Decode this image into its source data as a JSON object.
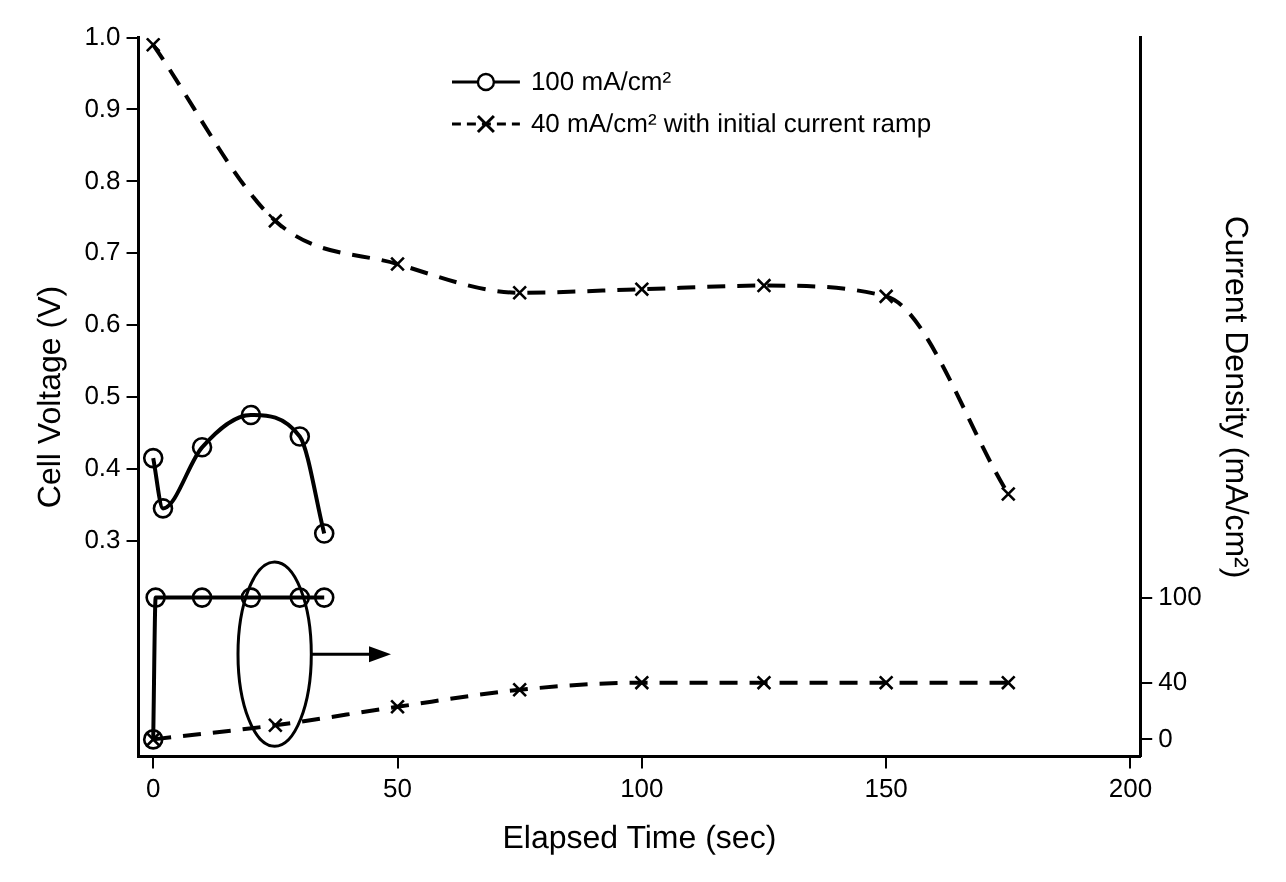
{
  "chart_data": {
    "type": "line",
    "xlabel": "Elapsed Time (sec)",
    "ylabel": "Cell Voltage (V)",
    "y2label": "Current Density (mA/cm²)",
    "xlim": [
      -3,
      202
    ],
    "xticks": [
      0,
      50,
      100,
      150,
      200
    ],
    "ylim": [
      0,
      1.0
    ],
    "yticks": [
      0.3,
      0.4,
      0.5,
      0.6,
      0.7,
      0.8,
      0.9,
      {
        "value": 1.0,
        "label": "1.0"
      }
    ],
    "y2lim": [
      -12,
      495
    ],
    "y2ticks": [
      0,
      40,
      100
    ],
    "grid": false,
    "legend": "top",
    "series": [
      {
        "name": "100 mA/cm²",
        "color": "#000000",
        "marker": "circle",
        "line_style": "solid",
        "x": [
          0,
          2,
          10,
          20,
          30,
          35
        ],
        "values": [
          0.415,
          0.345,
          0.43,
          0.475,
          0.445,
          0.31
        ]
      },
      {
        "name": "40 mA/cm² with initial current ramp",
        "color": "#000000",
        "marker": "cross",
        "line_style": "dashed",
        "x": [
          0,
          25,
          50,
          75,
          100,
          125,
          150,
          175
        ],
        "values": [
          0.99,
          0.745,
          0.685,
          0.645,
          0.65,
          0.655,
          0.64,
          0.365
        ]
      },
      {
        "color": "#000000",
        "marker": "cross",
        "line_style": "dashed",
        "axis": "y2",
        "x": [
          0,
          25,
          50,
          75,
          100,
          125,
          150,
          175
        ],
        "values": [
          0,
          10,
          23,
          35,
          40,
          40,
          40,
          40
        ]
      },
      {
        "color": "#000000",
        "marker": "circle",
        "line_style": "solid",
        "axis": "y2",
        "x": [
          0,
          0.5,
          10,
          20,
          30,
          35
        ],
        "values": [
          0,
          100,
          100,
          100,
          100,
          100
        ]
      }
    ]
  }
}
